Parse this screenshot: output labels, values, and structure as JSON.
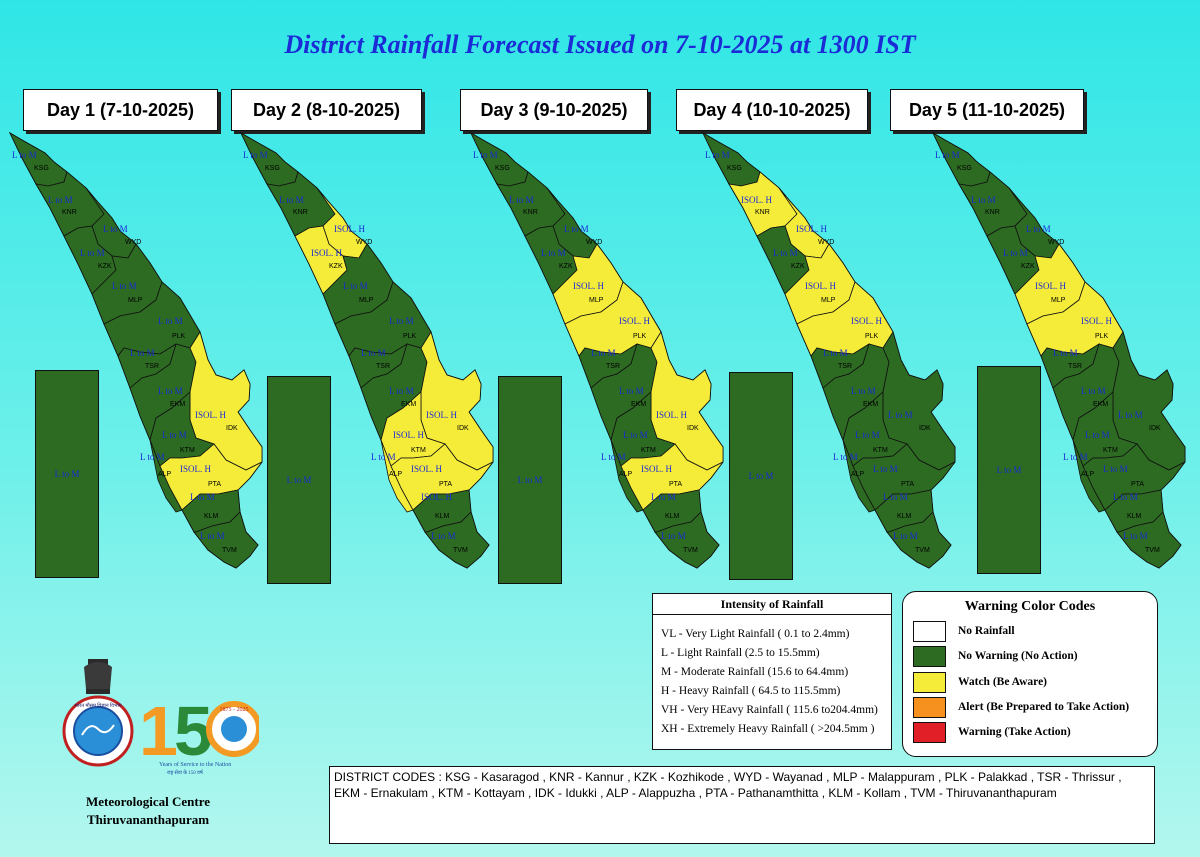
{
  "title": "District Rainfall Forecast Issued on  7-10-2025 at 1300 IST",
  "colors": {
    "no_warning": "#2d6b22",
    "watch": "#f5ec3a",
    "alert": "#f6911f",
    "warning": "#e11f26",
    "no_rainfall": "#ffffff",
    "label_blue": "#1a2ad6"
  },
  "days": [
    {
      "label": "Day 1 (7-10-2025)",
      "sea_label": "L to M",
      "watch_districts": [
        "IDK",
        "PTA"
      ],
      "warnings": {
        "KSG": "L to M",
        "KNR": "L to M",
        "KZK": "L to M",
        "WYD": "L to M",
        "MLP": "L to M",
        "PLK": "L to M",
        "TSR": "L to M",
        "EKM": "L to M",
        "IDK": "ISOL. H",
        "KTM": "L to M",
        "ALP": "L to M",
        "PTA": "ISOL. H",
        "KLM": "L to M",
        "TVM": "L to M"
      }
    },
    {
      "label": "Day 2 (8-10-2025)",
      "sea_label": "L to M",
      "watch_districts": [
        "WYD",
        "KZK",
        "IDK",
        "KTM",
        "PTA",
        "ALP"
      ],
      "warnings": {
        "KSG": "L to M",
        "KNR": "L to M",
        "KZK": "ISOL. H",
        "WYD": "ISOL. H",
        "MLP": "L to M",
        "PLK": "L to M",
        "TSR": "L to M",
        "EKM": "L to M",
        "IDK": "ISOL. H",
        "KTM": "ISOL. H",
        "ALP": "L to M",
        "PTA": "ISOL. H",
        "KLM": "ISOL. H",
        "TVM": "L to M"
      }
    },
    {
      "label": "Day 3 (9-10-2025)",
      "sea_label": "L to M",
      "watch_districts": [
        "MLP",
        "PLK",
        "IDK",
        "PTA"
      ],
      "warnings": {
        "KSG": "L to M",
        "KNR": "L to M",
        "KZK": "L to M",
        "WYD": "L to M",
        "MLP": "ISOL. H",
        "PLK": "ISOL. H",
        "TSR": "L to M",
        "EKM": "L to M",
        "IDK": "ISOL. H",
        "KTM": "L to M",
        "ALP": "L to M",
        "PTA": "ISOL. H",
        "KLM": "L to M",
        "TVM": "L to M"
      }
    },
    {
      "label": "Day 4 (10-10-2025)",
      "sea_label": "L to M",
      "watch_districts": [
        "KNR",
        "WYD",
        "MLP",
        "PLK"
      ],
      "warnings": {
        "KSG": "L to M",
        "KNR": "ISOL. H",
        "KZK": "L to M",
        "WYD": "ISOL. H",
        "MLP": "ISOL. H",
        "PLK": "ISOL. H",
        "TSR": "L to M",
        "EKM": "L to M",
        "IDK": "L to M",
        "KTM": "L to M",
        "ALP": "L to M",
        "PTA": "L to M",
        "KLM": "L to M",
        "TVM": "L to M"
      }
    },
    {
      "label": "Day 5 (11-10-2025)",
      "sea_label": "L to M",
      "watch_districts": [
        "MLP",
        "PLK"
      ],
      "warnings": {
        "KSG": "L to M",
        "KNR": "L to M",
        "KZK": "L to M",
        "WYD": "L to M",
        "MLP": "ISOL. H",
        "PLK": "ISOL. H",
        "TSR": "L to M",
        "EKM": "L to M",
        "IDK": "L to M",
        "KTM": "L to M",
        "ALP": "L to M",
        "PTA": "L to M",
        "KLM": "L to M",
        "TVM": "L to M"
      }
    }
  ],
  "intensity": {
    "title": "Intensity of Rainfall",
    "items": [
      "VL - Very Light Rainfall ( 0.1 to 2.4mm)",
      "L  - Light Rainfall (2.5 to 15.5mm)",
      "M  - Moderate Rainfall (15.6 to 64.4mm)",
      "H  - Heavy Rainfall ( 64.5 to 115.5mm)",
      "VH - Very HEavy Rainfall ( 115.6 to204.4mm)",
      "XH - Extremely Heavy Rainfall ( >204.5mm )"
    ]
  },
  "warning_codes": {
    "title": "Warning Color Codes",
    "items": [
      {
        "label": "No Rainfall",
        "color": "#ffffff"
      },
      {
        "label": "No Warning (No Action)",
        "color": "#2d6b22"
      },
      {
        "label": "Watch (Be Aware)",
        "color": "#f5ec3a"
      },
      {
        "label": "Alert (Be Prepared to Take Action)",
        "color": "#f6911f"
      },
      {
        "label": "Warning (Take Action)",
        "color": "#e11f26"
      }
    ]
  },
  "district_codes": "DISTRICT CODES : KSG - Kasaragod , KNR - Kannur , KZK - Kozhikode , WYD - Wayanad , MLP - Malappuram , PLK - Palakkad , TSR - Thrissur , EKM - Ernakulam , KTM - Kottayam , IDK - Idukki , ALP - Alappuzha ,      PTA - Pathanamthitta , KLM - Kollam , TVM - Thiruvananthapuram",
  "centre": {
    "line1": "Meteorological Centre",
    "line2": "Thiruvananthapuram"
  },
  "logo": {
    "number": "150",
    "tagline": "Years of Service to the Nation",
    "sub": "राष्ट्र सेवा के 150 वर्ष",
    "years": "1875 - 2025"
  },
  "emblem_text": "भारत मौसम विज्ञान विभाग"
}
